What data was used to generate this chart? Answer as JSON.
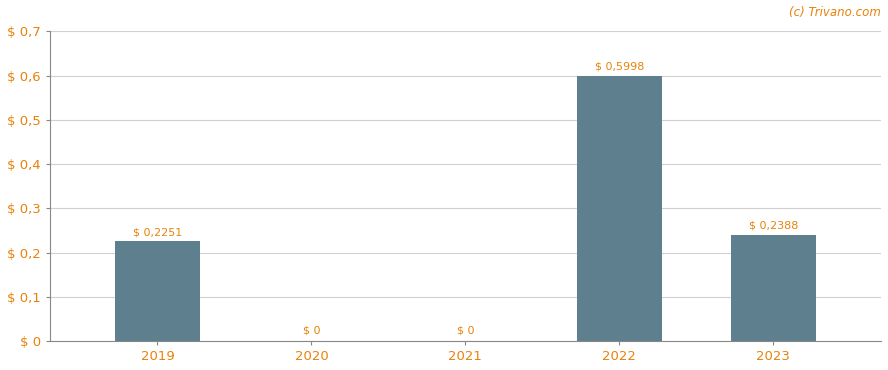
{
  "categories": [
    "2019",
    "2020",
    "2021",
    "2022",
    "2023"
  ],
  "values": [
    0.2251,
    0.0,
    0.0,
    0.5998,
    0.2388
  ],
  "bar_color": "#5e7f8e",
  "bar_labels": [
    "$ 0,2251",
    "$ 0",
    "$ 0",
    "$ 0,5998",
    "$ 0,2388"
  ],
  "ylim": [
    0,
    0.7
  ],
  "yticks": [
    0.0,
    0.1,
    0.2,
    0.3,
    0.4,
    0.5,
    0.6,
    0.7
  ],
  "ytick_labels": [
    "$ 0",
    "$ 0,1",
    "$ 0,2",
    "$ 0,3",
    "$ 0,4",
    "$ 0,5",
    "$ 0,6",
    "$ 0,7"
  ],
  "watermark": "(c) Trivano.com",
  "watermark_color": "#e8820a",
  "background_color": "#ffffff",
  "grid_color": "#d0d0d0",
  "bar_label_fontsize": 8.0,
  "tick_fontsize": 9.5,
  "watermark_fontsize": 8.5,
  "label_color": "#e8820a"
}
